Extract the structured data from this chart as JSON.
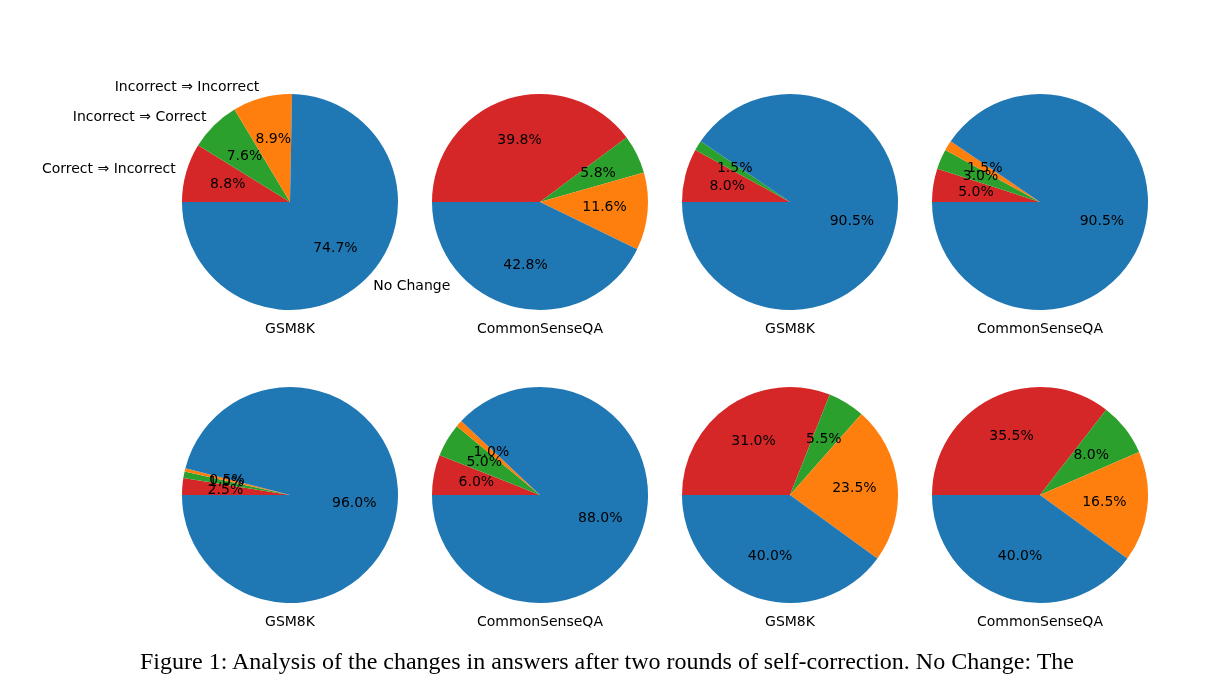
{
  "chart_data": [
    {
      "type": "pie",
      "xlabel": "GSM8K",
      "categories": [
        "Correct ⇒ Incorrect",
        "Incorrect ⇒ Correct",
        "Incorrect ⇒ Incorrect",
        "No Change"
      ],
      "values": [
        8.8,
        7.6,
        8.9,
        74.7
      ],
      "value_labels": [
        "8.8%",
        "7.6%",
        "8.9%",
        "74.7%"
      ],
      "colors": [
        "#d62728",
        "#2ca02c",
        "#ff7f0e",
        "#1f77b4"
      ],
      "annotations": [
        "Figure 1: Analysis of the changes in answers after two rounds of self-correction. No Change: The"
      ]
    },
    {
      "type": "pie",
      "xlabel": "CommonSenseQA",
      "categories": [
        null,
        null,
        null,
        null
      ],
      "values": [
        39.8,
        5.8,
        11.6,
        42.8
      ],
      "value_labels": [
        "39.8%",
        "5.8%",
        "11.6%",
        "42.8%"
      ],
      "colors": [
        "#d62728",
        "#2ca02c",
        "#ff7f0e",
        "#1f77b4"
      ]
    },
    {
      "type": "pie",
      "xlabel": "GSM8K",
      "categories": [
        null,
        null,
        null,
        null
      ],
      "values": [
        8.0,
        1.5,
        0,
        90.5
      ],
      "value_labels": [
        "8.0%",
        "1.5%",
        null,
        "90.5%"
      ],
      "colors": [
        "#d62728",
        "#2ca02c",
        "#ff7f0e",
        "#1f77b4"
      ]
    },
    {
      "type": "pie",
      "xlabel": "CommonSenseQA",
      "categories": [
        null,
        null,
        null,
        null
      ],
      "values": [
        5.0,
        3.0,
        1.5,
        90.5
      ],
      "value_labels": [
        "5.0%",
        "3.0%",
        "1.5%",
        "90.5%"
      ],
      "colors": [
        "#d62728",
        "#2ca02c",
        "#ff7f0e",
        "#1f77b4"
      ]
    },
    {
      "type": "pie",
      "xlabel": "GSM8K",
      "categories": [
        null,
        null,
        null,
        null
      ],
      "values": [
        2.5,
        1.0,
        0.5,
        96.0
      ],
      "value_labels": [
        "2.5%",
        "1.0%",
        "0.5%",
        "96.0%"
      ],
      "colors": [
        "#d62728",
        "#2ca02c",
        "#ff7f0e",
        "#1f77b4"
      ]
    },
    {
      "type": "pie",
      "xlabel": "CommonSenseQA",
      "categories": [
        null,
        null,
        null,
        null
      ],
      "values": [
        6.0,
        5.0,
        1.0,
        88.0
      ],
      "value_labels": [
        "6.0%",
        "5.0%",
        "1.0%",
        "88.0%"
      ],
      "colors": [
        "#d62728",
        "#2ca02c",
        "#ff7f0e",
        "#1f77b4"
      ]
    },
    {
      "type": "pie",
      "xlabel": "GSM8K",
      "categories": [
        null,
        null,
        null,
        null
      ],
      "values": [
        31.0,
        5.5,
        23.5,
        40.0
      ],
      "value_labels": [
        "31.0%",
        "5.5%",
        "23.5%",
        "40.0%"
      ],
      "colors": [
        "#d62728",
        "#2ca02c",
        "#ff7f0e",
        "#1f77b4"
      ]
    },
    {
      "type": "pie",
      "xlabel": "CommonSenseQA",
      "categories": [
        null,
        null,
        null,
        null
      ],
      "values": [
        35.5,
        8.0,
        16.5,
        40.0
      ],
      "value_labels": [
        "35.5%",
        "8.0%",
        "16.5%",
        "40.0%"
      ],
      "colors": [
        "#d62728",
        "#2ca02c",
        "#ff7f0e",
        "#1f77b4"
      ]
    }
  ]
}
